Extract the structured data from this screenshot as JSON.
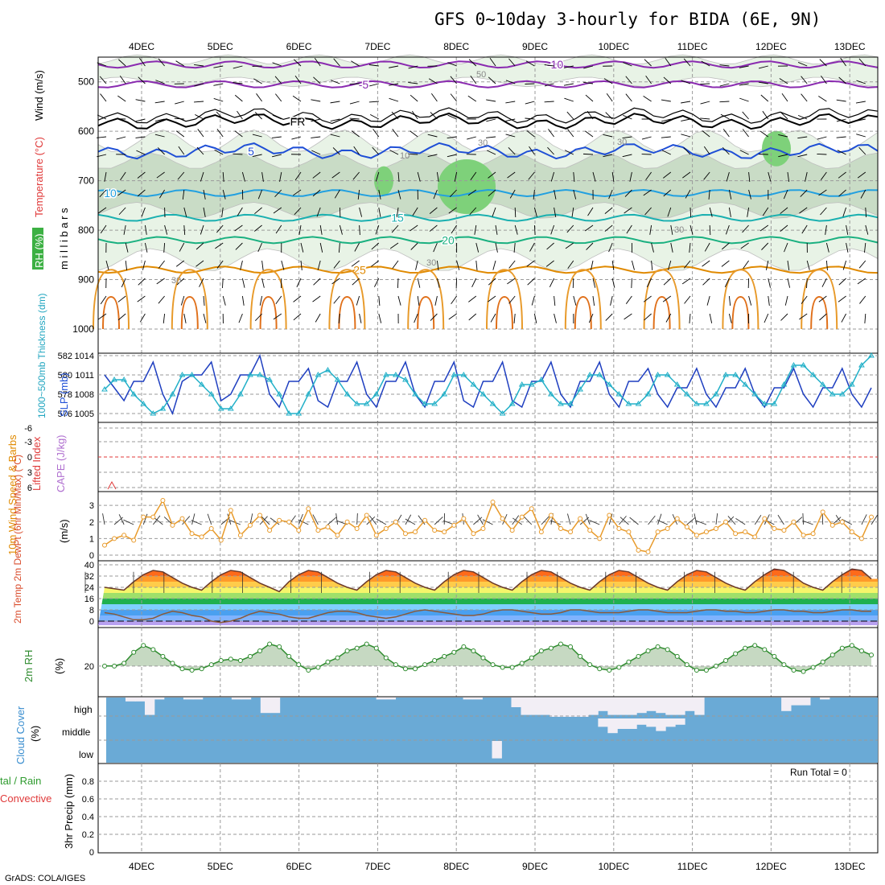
{
  "title": "GFS 0~10day 3-hourly for BIDA (6E, 9N)",
  "footer": "GrADS: COLA/IGES",
  "date_labels": [
    "4DEC",
    "5DEC",
    "6DEC",
    "7DEC",
    "8DEC",
    "9DEC",
    "10DEC",
    "11DEC",
    "12DEC",
    "13DEC"
  ],
  "colors": {
    "rh_green": "#3cb043",
    "temp_contour": "#e08a00",
    "wind_blue": "#1f4fd6",
    "cloud_blue": "#6aaad6",
    "rh2m_green": "#2e8b2e",
    "cape_purple": "#b070d0",
    "li_red": "#e03a3a"
  },
  "chart_data": [
    {
      "type": "heatmap",
      "panel": "upper-air",
      "ylabel_parts": [
        "RH (%)",
        "Temperature (°C)",
        "Wind (m/s)"
      ],
      "ylabel2": "m i l l i b a r s",
      "y_ticks": [
        500,
        600,
        700,
        800,
        900,
        1000
      ],
      "ylim": [
        1000,
        450
      ],
      "isotherms": [
        {
          "label": "-10",
          "level_mb": 465
        },
        {
          "label": "-5",
          "level_mb": 505
        },
        {
          "label": "FR",
          "level_mb": 580
        },
        {
          "label": "5",
          "level_mb": 640
        },
        {
          "label": "10",
          "level_mb": 725
        },
        {
          "label": "15",
          "level_mb": 775
        },
        {
          "label": "20",
          "level_mb": 820
        },
        {
          "label": "25",
          "level_mb": 880
        }
      ],
      "rh_labels": [
        "50",
        "30",
        "30",
        "10",
        "30",
        "30",
        "30"
      ]
    },
    {
      "type": "line",
      "panel": "thickness-slp",
      "ylabel": "1000~500mb Thickness (dm)",
      "ylabel2": "SLP (mb)",
      "y_ticks_left": [
        576,
        578,
        580,
        582
      ],
      "y_ticks_right": [
        1005,
        1008,
        1011,
        1014
      ],
      "series": [
        {
          "name": "SLP (mb)",
          "values": [
            1011,
            1009,
            1007,
            1010,
            1010,
            1013,
            1008,
            1005,
            1010,
            1011,
            1011,
            1013,
            1007,
            1008,
            1011,
            1011,
            1014,
            1008,
            1006,
            1010,
            1010,
            1012,
            1007,
            1006,
            1010,
            1010,
            1013,
            1008,
            1006,
            1010,
            1010,
            1013,
            1008,
            1006,
            1010,
            1010,
            1013,
            1007,
            1006,
            1010,
            1010,
            1013,
            1007,
            1006,
            1010,
            1010,
            1013,
            1008,
            1006,
            1010,
            1010,
            1013,
            1008,
            1006,
            1010,
            1010,
            1012,
            1008,
            1006,
            1009,
            1009,
            1012,
            1008,
            1006,
            1009,
            1009,
            1012,
            1008,
            1006,
            1009,
            1009,
            1012,
            1008,
            1006,
            1009,
            1009,
            1012,
            1008,
            1006,
            1009
          ]
        },
        {
          "name": "Thickness (dm)",
          "values": [
            578.5,
            579.5,
            579.5,
            578,
            577,
            576,
            576.5,
            578,
            580,
            580,
            579,
            578,
            576.5,
            576.5,
            578,
            580,
            580,
            579.5,
            578,
            576,
            576,
            578,
            580,
            580.5,
            579.5,
            578,
            577,
            577,
            578,
            580,
            580,
            579.5,
            578,
            577,
            577,
            578,
            580,
            580,
            579,
            578,
            577,
            576,
            577,
            579,
            579,
            579.5,
            578,
            577,
            577,
            578.5,
            580,
            580,
            579,
            578,
            577,
            577,
            578,
            580,
            580,
            579,
            578,
            577,
            577,
            578,
            580,
            580,
            579,
            578,
            577,
            577,
            579,
            581,
            581,
            580,
            579,
            578,
            578,
            579,
            581,
            582
          ]
        }
      ]
    },
    {
      "type": "line",
      "panel": "stability",
      "ylabel": "Lifted Index",
      "ylabel2": "CAPE (J/kg)",
      "y_ticks": [
        "-6",
        "-3",
        "0",
        "3",
        "6"
      ],
      "series": [
        {
          "name": "Lifted Index",
          "values": [
            6,
            6,
            6,
            6,
            6,
            6,
            6,
            6,
            6,
            6
          ]
        },
        {
          "name": "CAPE (J/kg)",
          "values": [
            0,
            0,
            0,
            0,
            0,
            0,
            0,
            0,
            0,
            0
          ]
        }
      ]
    },
    {
      "type": "line",
      "panel": "wind10m",
      "ylabel": "10m Wind Speed & Barbs",
      "ylabel2": "(m/s)",
      "y_ticks": [
        0,
        1,
        2,
        3
      ],
      "ylim": [
        0,
        3.5
      ],
      "series": [
        {
          "name": "10m Wind Speed",
          "values": [
            0.6,
            1.0,
            1.2,
            0.9,
            2.3,
            2.3,
            3.3,
            1.8,
            2.2,
            1.3,
            1.1,
            1.6,
            0.9,
            2.7,
            1.2,
            1.8,
            2.4,
            1.5,
            2.1,
            2.0,
            1.5,
            2.8,
            1.5,
            1.7,
            1.2,
            2.0,
            1.6,
            2.4,
            1.2,
            1.6,
            2.0,
            1.3,
            1.4,
            2.1,
            1.5,
            1.4,
            1.8,
            2.2,
            1.3,
            1.6,
            3.2,
            2.2,
            1.5,
            2.3,
            2.8,
            1.4,
            2.4,
            1.6,
            1.4,
            2.2,
            1.5,
            1.0,
            2.4,
            1.6,
            1.4,
            0.3,
            0.2,
            1.4,
            1.6,
            2.2,
            1.7,
            1.2,
            1.4,
            1.6,
            2.0,
            1.3,
            1.4,
            1.1,
            2.2,
            1.6,
            1.5,
            2.0,
            1.2,
            1.3,
            2.6,
            1.8,
            2.0,
            1.4,
            1.0,
            2.3
          ]
        }
      ]
    },
    {
      "type": "area",
      "panel": "temp2m",
      "ylabel": "2m Temp 2m DewPt (6hr Min/Max) (°C)",
      "y_ticks": [
        0,
        8,
        16,
        24,
        32,
        40
      ],
      "ylim": [
        -3,
        40
      ],
      "series": [
        {
          "name": "2m Temp",
          "values": [
            24,
            23,
            22,
            28,
            33,
            36,
            35,
            31,
            27,
            24,
            22,
            28,
            33,
            36,
            35,
            31,
            27,
            24,
            21,
            28,
            33,
            36,
            35,
            31,
            27,
            24,
            22,
            28,
            33,
            36,
            35,
            31,
            27,
            24,
            22,
            28,
            33,
            36,
            35,
            31,
            27,
            24,
            22,
            28,
            33,
            36,
            35,
            31,
            27,
            24,
            22,
            28,
            33,
            36,
            35,
            31,
            27,
            24,
            22,
            28,
            33,
            36,
            35,
            31,
            27,
            24,
            22,
            28,
            33,
            37,
            36,
            32,
            27,
            24,
            22,
            28,
            33,
            37,
            36,
            30
          ]
        },
        {
          "name": "2m DewPt",
          "values": [
            6,
            5,
            3,
            1,
            1,
            2,
            5,
            7,
            6,
            4,
            3,
            0,
            -1,
            0,
            2,
            5,
            7,
            6,
            5,
            3,
            2,
            2,
            4,
            6,
            7,
            7,
            6,
            4,
            3,
            2,
            3,
            5,
            7,
            8,
            7,
            6,
            5,
            4,
            4,
            5,
            7,
            8,
            8,
            7,
            6,
            5,
            5,
            6,
            8,
            8,
            7,
            6,
            6,
            6,
            7,
            8,
            8,
            7,
            6,
            6,
            6,
            7,
            8,
            8,
            7,
            7,
            6,
            6,
            7,
            8,
            8,
            7,
            7,
            6,
            6,
            7,
            8,
            8,
            7,
            7
          ]
        }
      ]
    },
    {
      "type": "area",
      "panel": "rh2m",
      "ylabel": "2m RH",
      "ylabel2": "(%)",
      "y_ticks": [
        20
      ],
      "ylim": [
        0,
        48
      ],
      "series": [
        {
          "name": "2m RH",
          "values": [
            20,
            20,
            22,
            30,
            35,
            32,
            27,
            22,
            18,
            17,
            18,
            21,
            24,
            25,
            24,
            27,
            31,
            36,
            34,
            27,
            21,
            17,
            19,
            23,
            26,
            31,
            33,
            36,
            33,
            26,
            21,
            18,
            18,
            21,
            24,
            27,
            30,
            34,
            31,
            26,
            21,
            19,
            19,
            22,
            26,
            31,
            33,
            36,
            34,
            27,
            21,
            18,
            17,
            19,
            23,
            27,
            31,
            34,
            32,
            27,
            21,
            17,
            17,
            20,
            24,
            29,
            33,
            35,
            32,
            27,
            21,
            17,
            16,
            19,
            23,
            28,
            33,
            35,
            31,
            28
          ]
        }
      ]
    },
    {
      "type": "heatmap",
      "panel": "cloud",
      "ylabel": "Cloud Cover",
      "ylabel2": "(%)",
      "levels": [
        "high",
        "middle",
        "low"
      ],
      "high_clear_fraction": [
        0,
        0,
        0.2,
        0.2,
        0.9,
        0.1,
        0,
        0,
        0.1,
        0.1,
        0,
        0,
        0,
        0.1,
        0.1,
        0,
        0.8,
        0.8,
        0,
        0,
        0,
        0,
        0,
        0,
        0,
        0,
        0,
        0,
        0.1,
        0.1,
        0,
        0,
        0,
        0,
        0,
        0,
        0,
        0.1,
        0.1,
        0,
        0,
        0,
        0.5,
        0.9,
        0.9,
        0.9,
        1,
        1,
        1,
        1,
        0.9,
        0.7,
        0.9,
        0.9,
        0.9,
        0.8,
        0.7,
        0.8,
        0.9,
        0.9,
        0.7,
        0.9,
        0,
        0,
        0,
        0,
        0,
        0,
        0,
        0,
        0.7,
        0.4,
        0.4,
        0,
        0.1,
        0,
        0,
        0,
        0,
        0
      ],
      "middle_clear_fraction": [
        0,
        0,
        0,
        0,
        0,
        0,
        0,
        0,
        0,
        0,
        0,
        0,
        0,
        0,
        0,
        0,
        0,
        0,
        0,
        0,
        0,
        0,
        0,
        0,
        0,
        0,
        0,
        0,
        0,
        0,
        0,
        0,
        0,
        0,
        0,
        0,
        0,
        0,
        0,
        0,
        0,
        0,
        0,
        0,
        0,
        0,
        0,
        0,
        0,
        0,
        0,
        0.4,
        0.7,
        0.5,
        0.5,
        0.3,
        0.4,
        0.6,
        0.4,
        0.3,
        0,
        0,
        0,
        0,
        0,
        0,
        0,
        0,
        0,
        0,
        0,
        0,
        0,
        0,
        0,
        0,
        0,
        0,
        0,
        0
      ],
      "low_clear_fraction": [
        0,
        0,
        0,
        0,
        0,
        0,
        0,
        0,
        0,
        0,
        0,
        0,
        0,
        0,
        0,
        0,
        0,
        0,
        0,
        0,
        0,
        0,
        0,
        0,
        0,
        0,
        0,
        0,
        0,
        0,
        0,
        0,
        0,
        0,
        0,
        0,
        0,
        0,
        0,
        0,
        0.8,
        0,
        0,
        0,
        0,
        0,
        0,
        0,
        0,
        0,
        0,
        0,
        0,
        0,
        0,
        0,
        0,
        0,
        0,
        0,
        0,
        0,
        0,
        0,
        0,
        0,
        0,
        0,
        0,
        0,
        0,
        0,
        0,
        0,
        0,
        0,
        0,
        0,
        0,
        0
      ]
    },
    {
      "type": "bar",
      "panel": "precip",
      "ylabel_parts": [
        "tal / Rain",
        "Convective"
      ],
      "ylabel2": "3hr Precip (mm)",
      "y_ticks": [
        "0",
        "0.2",
        "0.4",
        "0.6",
        "0.8"
      ],
      "ylim": [
        0,
        1.0
      ],
      "run_total": "Run Total = 0",
      "values": [
        0,
        0,
        0,
        0,
        0,
        0,
        0,
        0,
        0,
        0
      ]
    }
  ]
}
